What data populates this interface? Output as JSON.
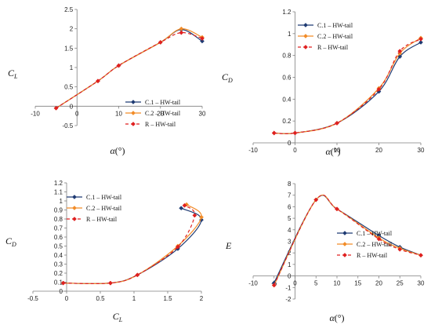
{
  "series_styles": [
    {
      "color": "#1f3b73",
      "dash": "",
      "marker": "diamond"
    },
    {
      "color": "#f28c28",
      "dash": "",
      "marker": "diamond"
    },
    {
      "color": "#e02020",
      "dash": "4,3",
      "marker": "diamond"
    }
  ],
  "chart_data": [
    {
      "type": "line",
      "xlabel_main": "α",
      "xlabel_unit": "(°)",
      "ylabel_main": "C",
      "ylabel_sub": "L",
      "xlim": [
        -10,
        30
      ],
      "ylim": [
        -0.5,
        2.5
      ],
      "xticks": [
        "-10",
        "0",
        "10",
        "20",
        "30"
      ],
      "yticks": [
        "-0.5",
        "0",
        "0.5",
        "1",
        "1.5",
        "2",
        "2.5"
      ],
      "legend_position": "bottom-right",
      "series": [
        {
          "name": "C.1 – HW-tail",
          "x": [
            -5,
            5,
            10,
            20,
            25,
            30
          ],
          "y": [
            -0.05,
            0.65,
            1.05,
            1.65,
            1.98,
            1.68
          ]
        },
        {
          "name": "C.2 – HW-tail",
          "x": [
            -5,
            5,
            10,
            20,
            25,
            30
          ],
          "y": [
            -0.05,
            0.65,
            1.05,
            1.65,
            2.0,
            1.78
          ]
        },
        {
          "name": "R – HW-tail",
          "x": [
            -5,
            5,
            10,
            20,
            25,
            30
          ],
          "y": [
            -0.05,
            0.65,
            1.05,
            1.65,
            1.9,
            1.75
          ]
        }
      ]
    },
    {
      "type": "line",
      "xlabel_main": "α",
      "xlabel_unit": "(°)",
      "ylabel_main": "C",
      "ylabel_sub": "D",
      "xlim": [
        -10,
        30
      ],
      "ylim": [
        0,
        1.2
      ],
      "xticks": [
        "-10",
        "0",
        "10",
        "20",
        "30"
      ],
      "yticks": [
        "0",
        "0.2",
        "0.4",
        "0.6",
        "0.8",
        "1",
        "1.2"
      ],
      "legend_position": "top-left",
      "series": [
        {
          "name": "C.1 – HW-tail",
          "x": [
            -5,
            0,
            10,
            20,
            25,
            30
          ],
          "y": [
            0.09,
            0.09,
            0.18,
            0.47,
            0.79,
            0.92
          ]
        },
        {
          "name": "C.2 – HW-tail",
          "x": [
            -5,
            0,
            10,
            20,
            25,
            30
          ],
          "y": [
            0.09,
            0.09,
            0.18,
            0.5,
            0.82,
            0.96
          ]
        },
        {
          "name": "R – HW-tail",
          "x": [
            -5,
            0,
            10,
            20,
            25,
            30
          ],
          "y": [
            0.09,
            0.09,
            0.18,
            0.49,
            0.84,
            0.95
          ]
        }
      ]
    },
    {
      "type": "line",
      "xlabel_main": "C",
      "xlabel_sub": "L",
      "ylabel_main": "C",
      "ylabel_sub": "D",
      "xlim": [
        -0.5,
        2
      ],
      "ylim": [
        0,
        1.2
      ],
      "xticks": [
        "-0.5",
        "0",
        "0.5",
        "1",
        "1.5",
        "2"
      ],
      "yticks": [
        "0",
        "0.1",
        "0.2",
        "0.3",
        "0.4",
        "0.5",
        "0.6",
        "0.7",
        "0.8",
        "0.9",
        "1",
        "1.1",
        "1.2"
      ],
      "legend_position": "top-left",
      "series": [
        {
          "name": "C.1 – HW-tail",
          "x": [
            -0.05,
            0.65,
            1.05,
            1.65,
            2.0,
            1.7
          ],
          "y": [
            0.09,
            0.09,
            0.18,
            0.47,
            0.79,
            0.92
          ]
        },
        {
          "name": "C.2 – HW-tail",
          "x": [
            -0.05,
            0.65,
            1.05,
            1.65,
            2.0,
            1.78
          ],
          "y": [
            0.09,
            0.09,
            0.18,
            0.5,
            0.82,
            0.96
          ]
        },
        {
          "name": "R – HW-tail",
          "x": [
            -0.05,
            0.65,
            1.05,
            1.65,
            1.9,
            1.75
          ],
          "y": [
            0.09,
            0.09,
            0.18,
            0.49,
            0.84,
            0.95
          ]
        }
      ]
    },
    {
      "type": "line",
      "xlabel_main": "α",
      "xlabel_unit": "(°)",
      "ylabel_main": "E",
      "ylabel_sub": "",
      "xlim": [
        -10,
        30
      ],
      "ylim": [
        -2,
        8
      ],
      "xticks": [
        "-10",
        "-5",
        "0",
        "5",
        "10",
        "15",
        "20",
        "25",
        "30"
      ],
      "yticks": [
        "-2",
        "-1",
        "0",
        "1",
        "2",
        "3",
        "4",
        "5",
        "6",
        "7",
        "8"
      ],
      "legend_position": "right",
      "series": [
        {
          "name": "C.1 – HW-tail",
          "x": [
            -5,
            5,
            10,
            20,
            25,
            30
          ],
          "y": [
            -0.6,
            6.6,
            5.8,
            3.5,
            2.5,
            1.8
          ]
        },
        {
          "name": "C.2 – HW-tail",
          "x": [
            -5,
            5,
            10,
            20,
            25,
            30
          ],
          "y": [
            -0.8,
            6.6,
            5.8,
            3.3,
            2.4,
            1.8
          ]
        },
        {
          "name": "R – HW-tail",
          "x": [
            -5,
            5,
            10,
            20,
            25,
            30
          ],
          "y": [
            -0.8,
            6.6,
            5.8,
            3.2,
            2.3,
            1.8
          ]
        }
      ]
    }
  ]
}
